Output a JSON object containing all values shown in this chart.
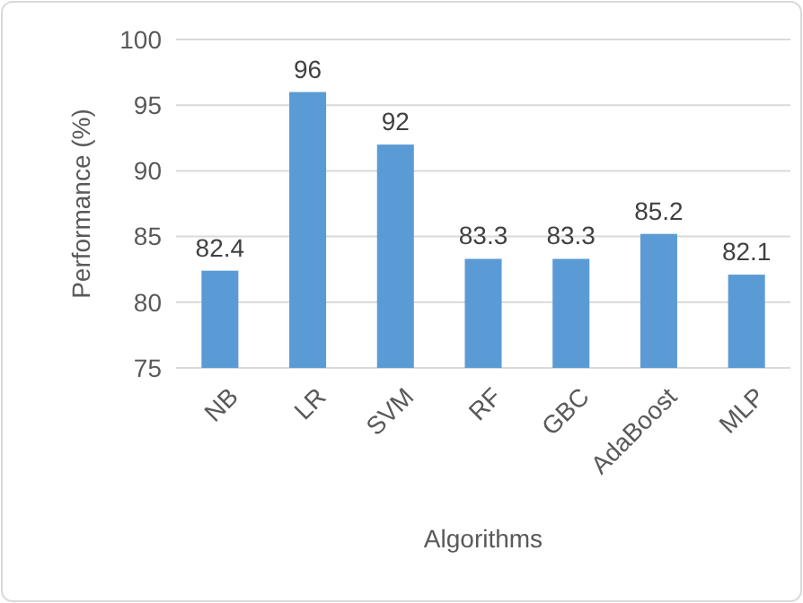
{
  "chart_data": {
    "type": "bar",
    "xlabel": "Algorithms",
    "ylabel": "Performance (%)",
    "categories": [
      "NB",
      "LR",
      "SVM",
      "RF",
      "GBC",
      "AdaBoost",
      "MLP"
    ],
    "values": [
      82.4,
      96,
      92,
      83.3,
      83.3,
      85.2,
      82.1
    ],
    "color": "#5b9bd5",
    "ylim": [
      75,
      100
    ],
    "yticks": [
      75,
      80,
      85,
      90,
      95,
      100
    ],
    "grid": "y",
    "data_labels": true
  }
}
